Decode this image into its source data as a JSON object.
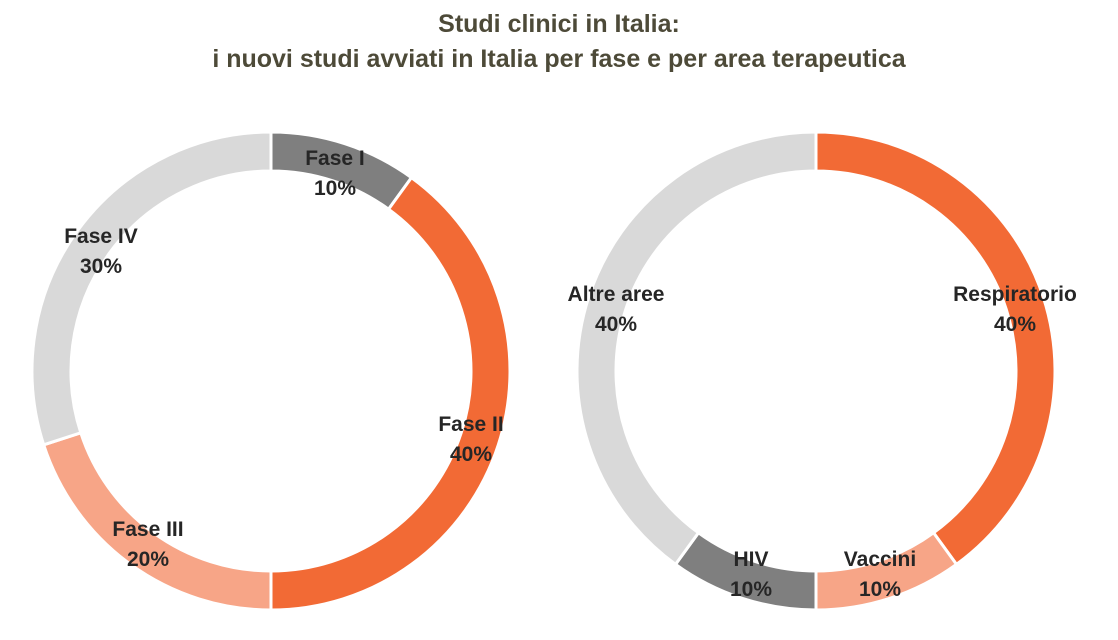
{
  "chart_title": {
    "line1": "Studi clinici in Italia:",
    "line2": "i nuovi studi avviati in Italia per fase e per area terapeutica"
  },
  "chart_data": [
    {
      "type": "pie",
      "subtype": "donut",
      "title": "i nuovi studi avviati in Italia per fase",
      "slices": [
        {
          "label": "Fase I",
          "value": 10,
          "value_label": "10%",
          "color": "#7f7f7f"
        },
        {
          "label": "Fase II",
          "value": 40,
          "value_label": "40%",
          "color": "#f26a35"
        },
        {
          "label": "Fase III",
          "value": 20,
          "value_label": "20%",
          "color": "#f7a587"
        },
        {
          "label": "Fase IV",
          "value": 30,
          "value_label": "30%",
          "color": "#d9d9d9"
        }
      ]
    },
    {
      "type": "pie",
      "subtype": "donut",
      "title": "i nuovi studi avviati in Italia per area terapeutica",
      "slices": [
        {
          "label": "Respiratorio",
          "value": 40,
          "value_label": "40%",
          "color": "#f26a35"
        },
        {
          "label": "Vaccini",
          "value": 10,
          "value_label": "10%",
          "color": "#f7a587"
        },
        {
          "label": "HIV",
          "value": 10,
          "value_label": "10%",
          "color": "#7f7f7f"
        },
        {
          "label": "Altre aree",
          "value": 40,
          "value_label": "40%",
          "color": "#d9d9d9"
        }
      ]
    }
  ]
}
